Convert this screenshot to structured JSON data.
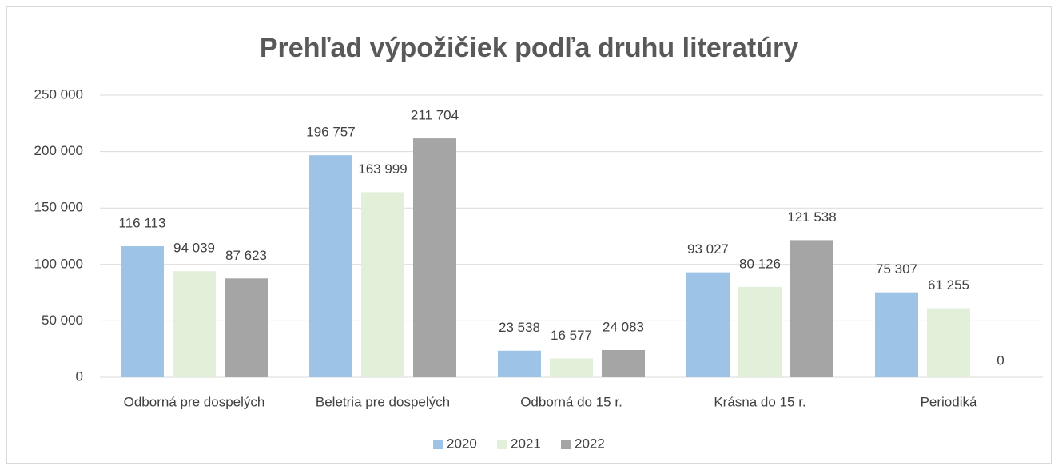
{
  "chart_data": {
    "type": "bar",
    "title": "Prehľad výpožičiek podľa druhu literatúry",
    "categories": [
      "Odborná pre dospelých",
      "Beletria pre dospelých",
      "Odborná do 15 r.",
      "Krásna do 15 r.",
      "Periodiká"
    ],
    "series": [
      {
        "name": "2020",
        "color": "#9dc3e6",
        "values": [
          116113,
          196757,
          23538,
          93027,
          75307
        ],
        "value_labels": [
          "116 113",
          "196 757",
          "23 538",
          "93 027",
          "75 307"
        ]
      },
      {
        "name": "2021",
        "color": "#e2efd9",
        "values": [
          94039,
          163999,
          16577,
          80126,
          61255
        ],
        "value_labels": [
          "94 039",
          "163 999",
          "16 577",
          "80 126",
          "61 255"
        ]
      },
      {
        "name": "2022",
        "color": "#a5a5a5",
        "values": [
          87623,
          211704,
          24083,
          121538,
          0
        ],
        "value_labels": [
          "87 623",
          "211 704",
          "24 083",
          "121 538",
          "0"
        ]
      }
    ],
    "ylim": [
      0,
      250000
    ],
    "yticks": [
      0,
      {
        "value": 50000,
        "label": "50 000"
      },
      {
        "value": 100000,
        "label": "100 000"
      },
      {
        "value": 150000,
        "label": "150 000"
      },
      {
        "value": 200000,
        "label": "200 000"
      },
      {
        "value": 250000,
        "label": "250 000"
      }
    ],
    "grid": true,
    "legend": "bottom"
  }
}
